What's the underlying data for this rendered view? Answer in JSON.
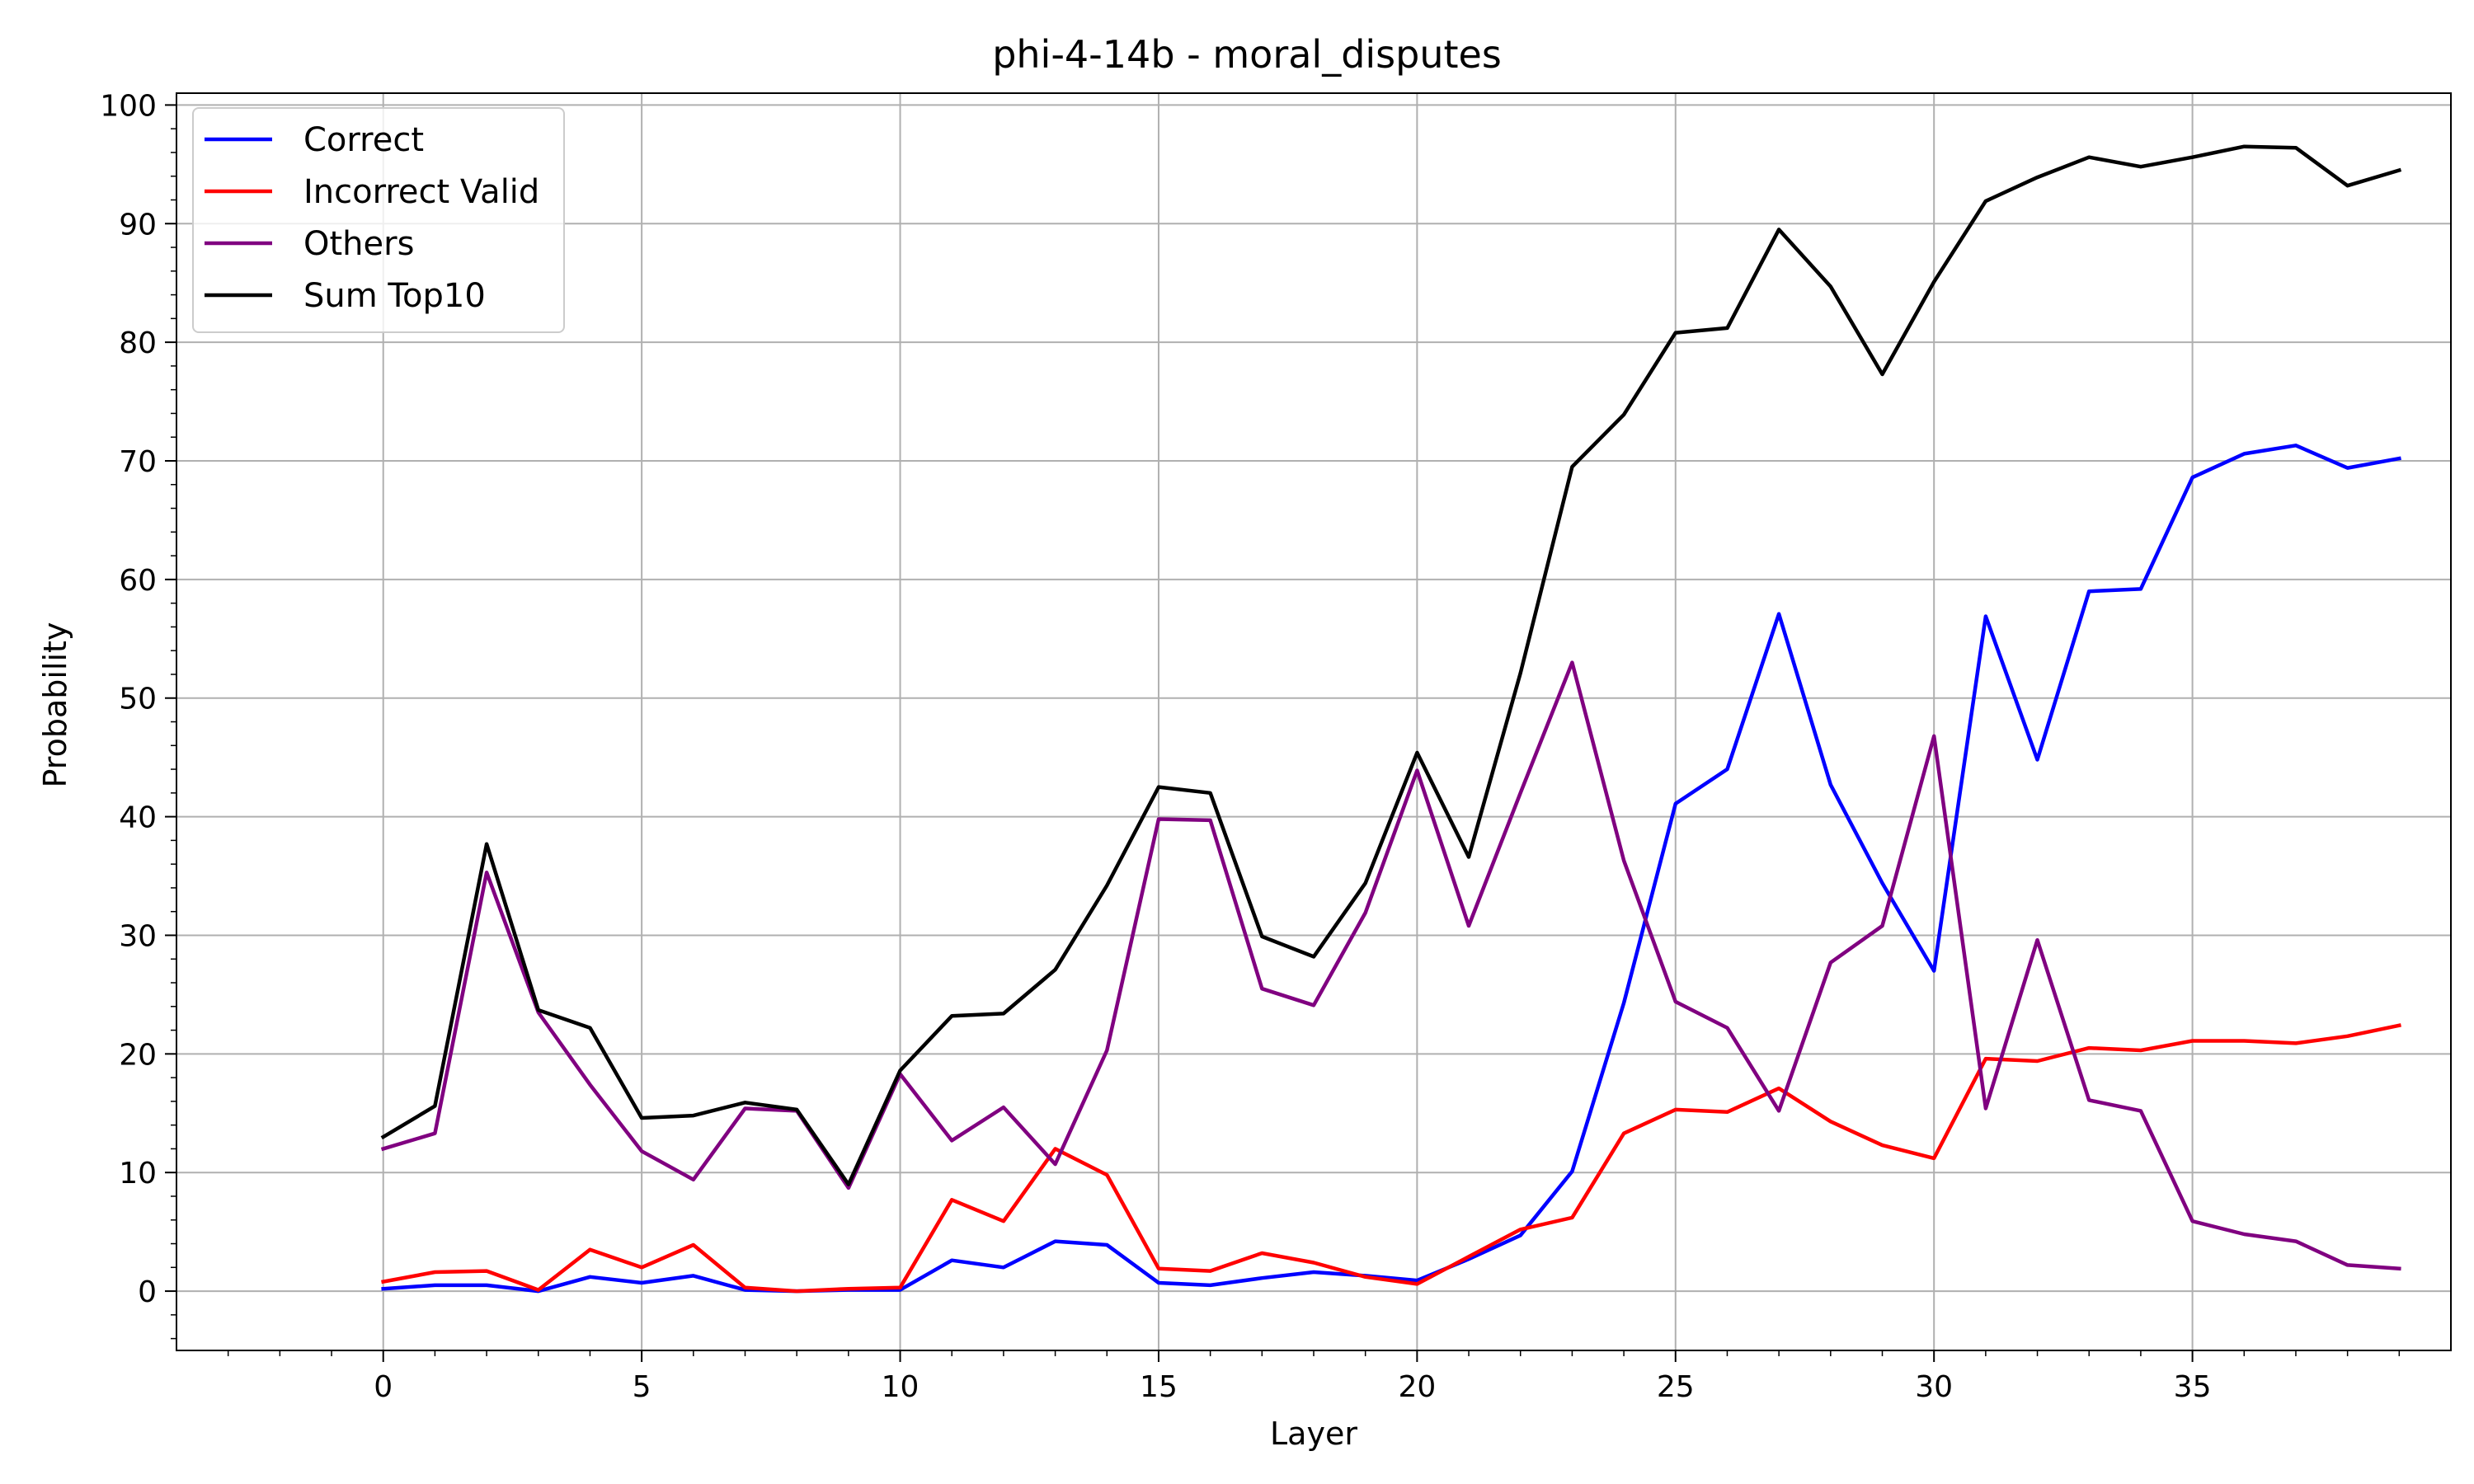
{
  "chart_data": {
    "type": "line",
    "title": "phi-4-14b - moral_disputes",
    "xlabel": "Layer",
    "ylabel": "Probability",
    "xlim": [
      -4,
      40
    ],
    "ylim": [
      -5,
      101
    ],
    "xticks": [
      0,
      5,
      10,
      15,
      20,
      25,
      30,
      35
    ],
    "yticks": [
      0,
      10,
      20,
      30,
      40,
      50,
      60,
      70,
      80,
      90,
      100
    ],
    "grid": true,
    "legend_position": "upper-left",
    "x": [
      0,
      1,
      2,
      3,
      4,
      5,
      6,
      7,
      8,
      9,
      10,
      11,
      12,
      13,
      14,
      15,
      16,
      17,
      18,
      19,
      20,
      21,
      22,
      23,
      24,
      25,
      26,
      27,
      28,
      29,
      30,
      31,
      32,
      33,
      34,
      35,
      36,
      37,
      38,
      39
    ],
    "series": [
      {
        "name": "Correct",
        "color": "#0000ff",
        "values": [
          0.2,
          0.5,
          0.5,
          0.0,
          1.2,
          0.7,
          1.3,
          0.1,
          0.0,
          0.1,
          0.1,
          2.6,
          2.0,
          4.2,
          3.9,
          0.7,
          0.5,
          1.1,
          1.6,
          1.3,
          0.9,
          2.7,
          4.7,
          10.1,
          24.3,
          41.1,
          44.0,
          57.1,
          42.7,
          34.4,
          27.0,
          56.9,
          44.8,
          59.0,
          59.2,
          68.6,
          70.6,
          71.3,
          69.4,
          70.2
        ]
      },
      {
        "name": "Incorrect Valid",
        "color": "#ff0000",
        "values": [
          0.8,
          1.6,
          1.7,
          0.1,
          3.5,
          2.0,
          3.9,
          0.3,
          0.0,
          0.2,
          0.3,
          7.7,
          5.9,
          12.0,
          9.8,
          1.9,
          1.7,
          3.2,
          2.4,
          1.2,
          0.6,
          2.9,
          5.2,
          6.2,
          13.3,
          15.3,
          15.1,
          17.1,
          14.3,
          12.3,
          11.2,
          19.6,
          19.4,
          20.5,
          20.3,
          21.1,
          21.1,
          20.9,
          21.5,
          22.4
        ]
      },
      {
        "name": "Others",
        "color": "#800080",
        "values": [
          12.0,
          13.3,
          35.3,
          23.5,
          17.4,
          11.8,
          9.4,
          15.4,
          15.2,
          8.7,
          18.3,
          12.7,
          15.5,
          10.7,
          20.3,
          39.8,
          39.7,
          25.5,
          24.1,
          31.9,
          43.9,
          30.8,
          42.0,
          53.0,
          36.3,
          24.4,
          22.2,
          15.2,
          27.7,
          30.8,
          46.8,
          15.4,
          29.6,
          16.1,
          15.2,
          5.9,
          4.8,
          4.2,
          2.2,
          1.9
        ]
      },
      {
        "name": "Sum Top10",
        "color": "#000000",
        "values": [
          13.0,
          15.6,
          37.7,
          23.7,
          22.2,
          14.6,
          14.8,
          15.9,
          15.3,
          9.0,
          18.6,
          23.2,
          23.4,
          27.1,
          34.2,
          42.5,
          42.0,
          29.9,
          28.2,
          34.4,
          45.4,
          36.6,
          52.1,
          69.5,
          73.9,
          80.8,
          81.2,
          89.5,
          84.7,
          77.3,
          85.1,
          91.9,
          93.9,
          95.6,
          94.8,
          95.6,
          96.5,
          96.4,
          93.2,
          94.5
        ]
      }
    ]
  }
}
